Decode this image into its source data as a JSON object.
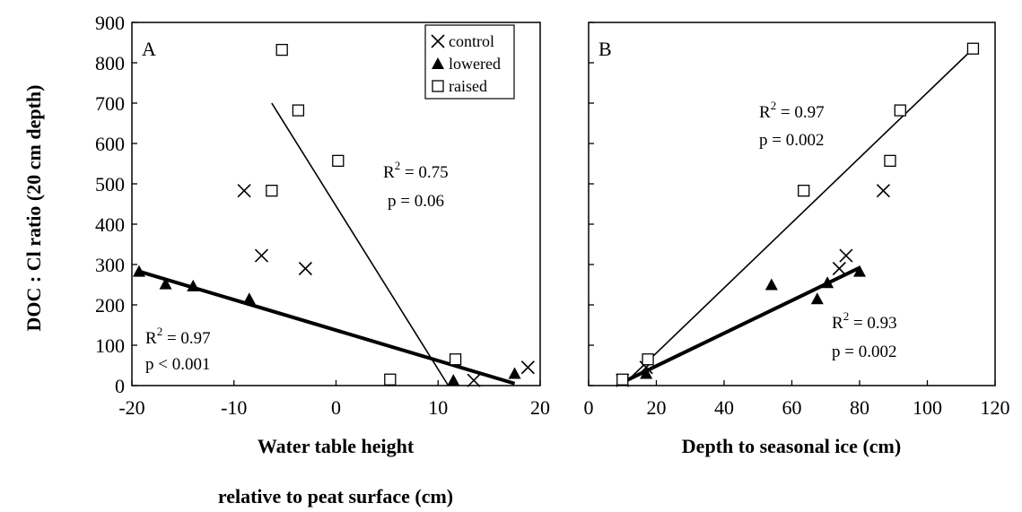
{
  "chart_data": {
    "type": "scatter",
    "ylabel": "DOC : Cl ratio (20 cm depth)",
    "ylim": [
      0,
      900
    ],
    "yticks": [
      0,
      100,
      200,
      300,
      400,
      500,
      600,
      700,
      800,
      900
    ],
    "grid": false,
    "legend": {
      "placement": "top-right of panel A",
      "entries": [
        {
          "series": "control",
          "label": "control",
          "marker": "x"
        },
        {
          "series": "lowered",
          "label": "lowered",
          "marker": "filled-triangle"
        },
        {
          "series": "raised",
          "label": "raised",
          "marker": "open-square"
        }
      ]
    },
    "panels": [
      {
        "label": "A",
        "xlabel_line1": "Water table height",
        "xlabel_line2": "relative to peat surface (cm)",
        "xlim": [
          -20,
          20
        ],
        "xticks": [
          -20,
          -10,
          0,
          10,
          20
        ],
        "series": [
          {
            "name": "control",
            "marker": "x",
            "points": [
              [
                -9,
                483
              ],
              [
                -7.3,
                322
              ],
              [
                -3,
                290
              ],
              [
                13.5,
                13
              ],
              [
                18.8,
                45
              ]
            ]
          },
          {
            "name": "lowered",
            "marker": "triangle",
            "points": [
              [
                -19.3,
                283
              ],
              [
                -16.7,
                252
              ],
              [
                -14,
                247
              ],
              [
                -8.5,
                215
              ],
              [
                11.5,
                13
              ],
              [
                17.5,
                30
              ]
            ]
          },
          {
            "name": "raised",
            "marker": "square",
            "points": [
              [
                -5.3,
                832
              ],
              [
                -3.7,
                682
              ],
              [
                0.2,
                557
              ],
              [
                -6.3,
                483
              ],
              [
                11.7,
                65
              ],
              [
                5.3,
                15
              ]
            ]
          }
        ],
        "fits": [
          {
            "series": "lowered",
            "weight": "bold",
            "x": [
              -19.3,
              17.5
            ],
            "y": [
              283,
              5
            ],
            "r2_label": "R",
            "r2_value": "= 0.97",
            "p_text": "p < 0.001"
          },
          {
            "series": "raised",
            "weight": "thin",
            "x": [
              -6.3,
              11
            ],
            "y": [
              700,
              0
            ],
            "r2_label": "R",
            "r2_value": "= 0.75",
            "p_text": "p = 0.06"
          }
        ]
      },
      {
        "label": "B",
        "xlabel_line1": "Depth to seasonal ice (cm)",
        "xlabel_line2": "",
        "xlim": [
          0,
          120
        ],
        "xticks": [
          0,
          20,
          40,
          60,
          80,
          100,
          120
        ],
        "series": [
          {
            "name": "control",
            "marker": "x",
            "points": [
              [
                76,
                322
              ],
              [
                74,
                290
              ],
              [
                87,
                483
              ],
              [
                10,
                13
              ],
              [
                17,
                45
              ]
            ]
          },
          {
            "name": "lowered",
            "marker": "triangle",
            "points": [
              [
                10,
                13
              ],
              [
                17,
                30
              ],
              [
                54,
                250
              ],
              [
                67.5,
                215
              ],
              [
                70.5,
                255
              ],
              [
                80,
                283
              ]
            ]
          },
          {
            "name": "raised",
            "marker": "square",
            "points": [
              [
                10,
                15
              ],
              [
                17.5,
                65
              ],
              [
                63.5,
                483
              ],
              [
                89,
                557
              ],
              [
                92,
                682
              ],
              [
                113.5,
                835
              ]
            ]
          }
        ],
        "fits": [
          {
            "series": "raised",
            "weight": "thin",
            "x": [
              10,
              113.5
            ],
            "y": [
              0,
              835
            ],
            "r2_label": "R",
            "r2_value": "= 0.97",
            "p_text": "p = 0.002"
          },
          {
            "series": "lowered",
            "weight": "bold",
            "x": [
              10,
              80
            ],
            "y": [
              8,
              292
            ],
            "r2_label": "R",
            "r2_value": "= 0.93",
            "p_text": "p = 0.002"
          }
        ]
      }
    ]
  }
}
